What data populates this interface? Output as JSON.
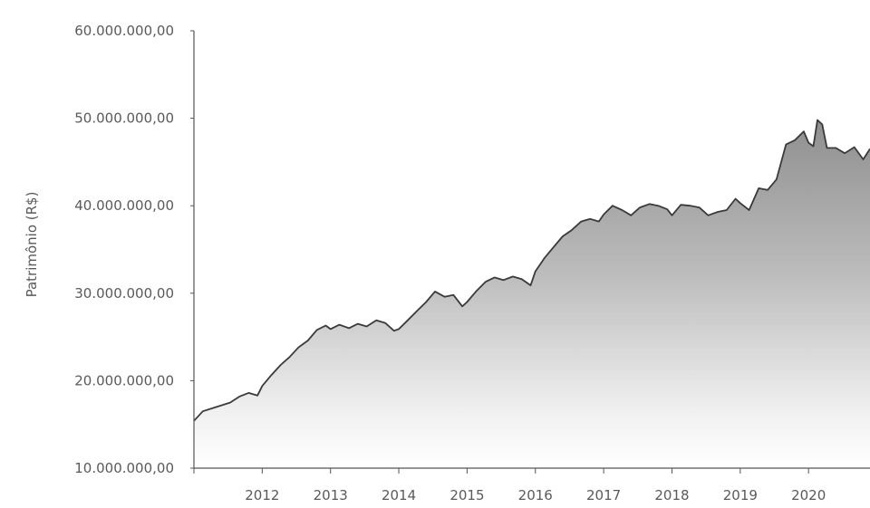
{
  "chart_data": {
    "type": "area",
    "title": "",
    "xlabel": "",
    "ylabel": "Patrimônio (R$)",
    "ylim": [
      10000000,
      60000000
    ],
    "xlim": [
      2011.0,
      2020.9
    ],
    "grid": false,
    "legend": "none",
    "y_ticks": [
      {
        "value": 10000000,
        "label": "10.000.000,00"
      },
      {
        "value": 20000000,
        "label": "20.000.000,00"
      },
      {
        "value": 30000000,
        "label": "30.000.000,00"
      },
      {
        "value": 40000000,
        "label": "40.000.000,00"
      },
      {
        "value": 50000000,
        "label": "50.000.000,00"
      },
      {
        "value": 60000000,
        "label": "60.000.000,00"
      }
    ],
    "x_ticks": [
      {
        "value": 2012,
        "label": "2012"
      },
      {
        "value": 2013,
        "label": "2013"
      },
      {
        "value": 2014,
        "label": "2014"
      },
      {
        "value": 2015,
        "label": "2015"
      },
      {
        "value": 2016,
        "label": "2016"
      },
      {
        "value": 2017,
        "label": "2017"
      },
      {
        "value": 2018,
        "label": "2018"
      },
      {
        "value": 2019,
        "label": "2019"
      },
      {
        "value": 2020,
        "label": "2020"
      }
    ],
    "colors": {
      "line": "#3a3a3a",
      "fill_top": "#999999",
      "fill_bottom": "#ffffff",
      "axis": "#555555"
    },
    "series": [
      {
        "x": [
          2011.0,
          2011.13,
          2011.33,
          2011.53,
          2011.67,
          2011.8,
          2011.93,
          2012.0,
          2012.13,
          2012.27,
          2012.4,
          2012.53,
          2012.67,
          2012.8,
          2012.93,
          2013.0,
          2013.13,
          2013.27,
          2013.4,
          2013.53,
          2013.67,
          2013.8,
          2013.93,
          2014.0,
          2014.13,
          2014.27,
          2014.4,
          2014.53,
          2014.67,
          2014.8,
          2014.93,
          2015.0,
          2015.13,
          2015.27,
          2015.4,
          2015.53,
          2015.67,
          2015.8,
          2015.93,
          2016.0,
          2016.13,
          2016.27,
          2016.4,
          2016.53,
          2016.67,
          2016.8,
          2016.93,
          2017.0,
          2017.13,
          2017.27,
          2017.4,
          2017.53,
          2017.67,
          2017.8,
          2017.93,
          2018.0,
          2018.13,
          2018.27,
          2018.4,
          2018.53,
          2018.67,
          2018.8,
          2018.93,
          2019.0,
          2019.13,
          2019.27,
          2019.4,
          2019.53,
          2019.67,
          2019.8,
          2019.93,
          2020.0,
          2020.07,
          2020.13,
          2020.2,
          2020.27,
          2020.4,
          2020.53,
          2020.67,
          2020.8,
          2020.9
        ],
        "y": [
          15400000,
          16500000,
          17000000,
          17500000,
          18200000,
          18600000,
          18300000,
          19400000,
          20600000,
          21800000,
          22700000,
          23800000,
          24600000,
          25800000,
          26300000,
          25900000,
          26400000,
          26000000,
          26500000,
          26200000,
          26900000,
          26600000,
          25700000,
          25900000,
          26900000,
          28000000,
          29000000,
          30200000,
          29600000,
          29800000,
          28500000,
          29000000,
          30200000,
          31300000,
          31800000,
          31500000,
          31900000,
          31600000,
          30900000,
          32500000,
          34000000,
          35300000,
          36500000,
          37200000,
          38200000,
          38500000,
          38200000,
          39000000,
          40000000,
          39500000,
          38900000,
          39800000,
          40200000,
          40000000,
          39600000,
          38900000,
          40100000,
          40000000,
          39800000,
          38900000,
          39300000,
          39500000,
          40800000,
          40300000,
          39500000,
          42000000,
          41800000,
          43000000,
          47000000,
          47500000,
          48500000,
          47200000,
          46800000,
          49800000,
          49300000,
          46600000,
          46600000,
          46000000,
          46700000,
          45300000,
          46500000
        ]
      }
    ]
  }
}
